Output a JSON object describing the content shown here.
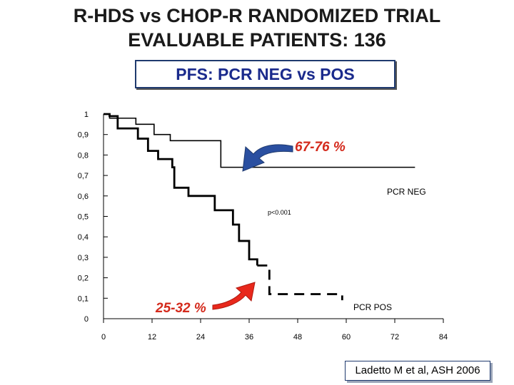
{
  "title": {
    "line1": "R-HDS vs CHOP-R  RANDOMIZED TRIAL",
    "line2": "EVALUABLE PATIENTS: 136"
  },
  "subtitle": "PFS: PCR NEG vs POS",
  "source": "Ladetto M et al, ASH 2006",
  "colors": {
    "text": "#1a1a1a",
    "subtitle_text": "#1a2a8c",
    "arrow": "#2a4fa0",
    "arrow_red": "#e8281c",
    "annotation_red": "#d42a1c",
    "curve": "#000000"
  },
  "chart_data": {
    "type": "line",
    "x_ticks": [
      "0",
      "12",
      "24",
      "36",
      "48",
      "60",
      "72",
      "84"
    ],
    "y_ticks": [
      "0",
      "0,1",
      "0,2",
      "0,3",
      "0,4",
      "0,5",
      "0,6",
      "0,7",
      "0,8",
      "0,9",
      "1"
    ],
    "xlim": [
      0,
      84
    ],
    "ylim": [
      0,
      1
    ],
    "series": [
      {
        "name": "PCR NEG",
        "style": "solid",
        "points": [
          [
            0,
            1.0
          ],
          [
            1.5,
            1.0
          ],
          [
            1.5,
            0.98
          ],
          [
            8,
            0.98
          ],
          [
            8,
            0.95
          ],
          [
            12.5,
            0.95
          ],
          [
            12.5,
            0.9
          ],
          [
            16.5,
            0.9
          ],
          [
            16.5,
            0.87
          ],
          [
            29,
            0.87
          ],
          [
            29,
            0.74
          ],
          [
            77,
            0.74
          ]
        ]
      },
      {
        "name": "PCR POS",
        "style": "solid-then-dashed",
        "points": [
          [
            0,
            1.0
          ],
          [
            1.5,
            1.0
          ],
          [
            1.5,
            0.99
          ],
          [
            3.5,
            0.99
          ],
          [
            3.5,
            0.93
          ],
          [
            8.5,
            0.93
          ],
          [
            8.5,
            0.88
          ],
          [
            11,
            0.88
          ],
          [
            11,
            0.82
          ],
          [
            13.5,
            0.82
          ],
          [
            13.5,
            0.78
          ],
          [
            17,
            0.78
          ],
          [
            17,
            0.74
          ],
          [
            17.5,
            0.74
          ],
          [
            17.5,
            0.64
          ],
          [
            21,
            0.64
          ],
          [
            21,
            0.6
          ],
          [
            27.5,
            0.6
          ],
          [
            27.5,
            0.53
          ],
          [
            32,
            0.53
          ],
          [
            32,
            0.46
          ],
          [
            33.5,
            0.46
          ],
          [
            33.5,
            0.38
          ],
          [
            36,
            0.38
          ],
          [
            36,
            0.29
          ],
          [
            38,
            0.29
          ],
          [
            38,
            0.26
          ],
          [
            41,
            0.26
          ],
          [
            41,
            0.12
          ],
          [
            59,
            0.12
          ],
          [
            59,
            0.09
          ]
        ],
        "dash_from_x": 38
      }
    ],
    "annotations": [
      {
        "text": "67-76 %",
        "color": "#d42a1c"
      },
      {
        "text": "25-32 %",
        "color": "#d42a1c"
      },
      {
        "text": "PCR NEG"
      },
      {
        "text": "p<0.001"
      },
      {
        "text": "PCR POS"
      }
    ]
  }
}
